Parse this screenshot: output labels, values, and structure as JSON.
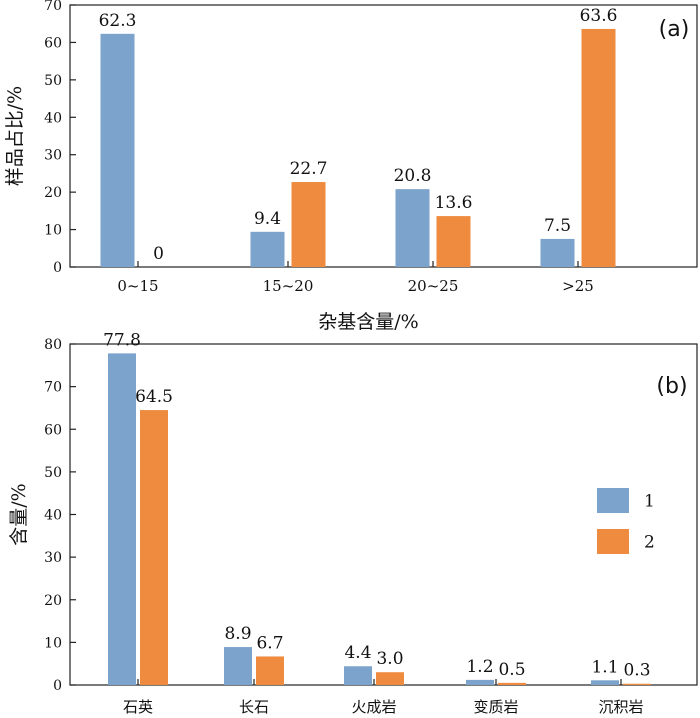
{
  "chart_data": [
    {
      "type": "bar",
      "panel_label": "(a)",
      "categories": [
        "0~15",
        "15~20",
        "20~25",
        ">25"
      ],
      "series": [
        {
          "name": "1",
          "values": [
            62.3,
            9.4,
            20.8,
            7.5
          ],
          "value_labels": [
            "62.3",
            "9.4",
            "20.8",
            "7.5"
          ]
        },
        {
          "name": "2",
          "values": [
            0,
            22.7,
            13.6,
            63.6
          ],
          "value_labels": [
            "0",
            "22.7",
            "13.6",
            "63.6"
          ]
        }
      ],
      "xlabel": "杂基含量/%",
      "ylabel": "样品占比/%",
      "ylim": [
        0,
        70
      ],
      "yticks": [
        0,
        10,
        20,
        30,
        40,
        50,
        60,
        70
      ],
      "grid": false
    },
    {
      "type": "bar",
      "panel_label": "(b)",
      "categories": [
        "石英",
        "长石",
        "火成岩",
        "变质岩",
        "沉积岩"
      ],
      "series": [
        {
          "name": "1",
          "values": [
            77.8,
            8.9,
            4.4,
            1.2,
            1.1
          ],
          "value_labels": [
            "77.8",
            "8.9",
            "4.4",
            "1.2",
            "1.1"
          ]
        },
        {
          "name": "2",
          "values": [
            64.5,
            6.7,
            3.0,
            0.5,
            0.3
          ],
          "value_labels": [
            "64.5",
            "6.7",
            "3.0",
            "0.5",
            "0.3"
          ]
        }
      ],
      "xlabel": "",
      "ylabel": "含量/%",
      "ylim": [
        0,
        80
      ],
      "yticks": [
        0,
        10,
        20,
        30,
        40,
        50,
        60,
        70,
        80
      ],
      "grid": false,
      "legend": {
        "placement": "right",
        "entries": [
          "1",
          "2"
        ]
      }
    }
  ],
  "colors": {
    "series_1": "#7BA3CB",
    "series_2": "#EE8B3F",
    "axis": "#222222"
  }
}
